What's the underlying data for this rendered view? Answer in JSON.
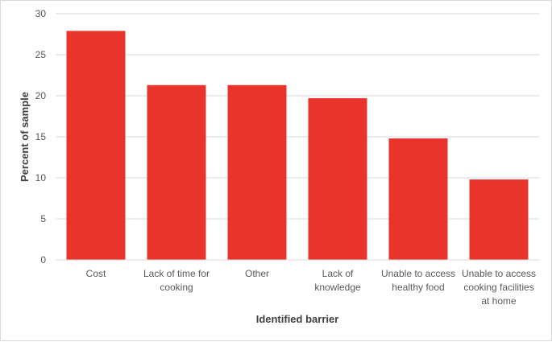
{
  "chart_data": {
    "type": "bar",
    "title": "",
    "xlabel": "Identified barrier",
    "ylabel": "Percent of sample",
    "categories": [
      [
        "Cost"
      ],
      [
        "Lack of time for",
        "cooking"
      ],
      [
        "Other"
      ],
      [
        "Lack of",
        "knowledge"
      ],
      [
        "Unable to access",
        "healthy food"
      ],
      [
        "Unable to access",
        "cooking facilities",
        "at home"
      ]
    ],
    "values": [
      27.9,
      21.3,
      21.3,
      19.7,
      14.8,
      9.8
    ],
    "ylim": [
      0,
      30
    ],
    "yticks": [
      0,
      5,
      10,
      15,
      20,
      25,
      30
    ],
    "grid": true,
    "legend": "none",
    "bar_color": "#E8342A",
    "grid_color": "#d9d9d9"
  }
}
